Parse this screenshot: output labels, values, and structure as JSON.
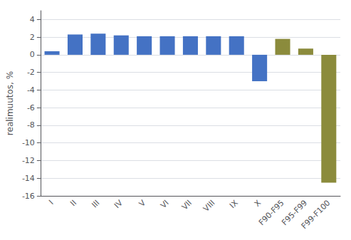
{
  "chart_data": {
    "type": "bar",
    "categories": [
      "I",
      "II",
      "III",
      "IV",
      "V",
      "VI",
      "VII",
      "VIII",
      "IX",
      "X",
      "F90-F95",
      "F95-F99",
      "F99-F100"
    ],
    "values": [
      0.4,
      2.3,
      2.4,
      2.2,
      2.1,
      2.1,
      2.1,
      2.1,
      2.1,
      -3.0,
      1.8,
      0.7,
      -14.5
    ],
    "colors": [
      "#4472C4",
      "#4472C4",
      "#4472C4",
      "#4472C4",
      "#4472C4",
      "#4472C4",
      "#4472C4",
      "#4472C4",
      "#4472C4",
      "#4472C4",
      "#8B8B3C",
      "#8B8B3C",
      "#8B8B3C"
    ],
    "ylabel": "realimuutos, %",
    "ylim": [
      -16,
      5
    ],
    "yticks": [
      4,
      2,
      0,
      -2,
      -4,
      -6,
      -8,
      -10,
      -12,
      -14,
      -16
    ],
    "grid": true
  }
}
